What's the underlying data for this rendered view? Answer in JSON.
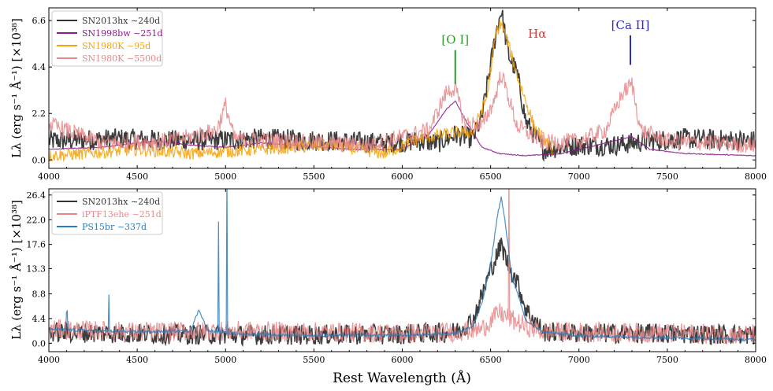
{
  "chart_data": [
    {
      "type": "line",
      "panel": "top",
      "ylabel": "Lλ (erg s⁻¹ Å⁻¹) [×10³⁸]",
      "xlim": [
        4000,
        8000
      ],
      "ylim": [
        -0.4,
        7.2
      ],
      "x_ticks": [
        4000,
        4500,
        5000,
        5500,
        6000,
        6500,
        7000,
        7500,
        8000
      ],
      "y_ticks": [
        0.0,
        2.2,
        4.4,
        6.6
      ],
      "y_tick_labels": [
        "0.0",
        "2.2",
        "4.4",
        "6.6"
      ],
      "legend_position": "top-left",
      "series": [
        {
          "name": "SN2013hx ∼240d",
          "color": "#333333",
          "noise": 0.5,
          "x": [
            4000,
            4400,
            4800,
            5200,
            5600,
            5900,
            6100,
            6200,
            6300,
            6400,
            6450,
            6500,
            6530,
            6560,
            6600,
            6650,
            6700,
            6800,
            6900,
            7000,
            7200,
            7400,
            7600,
            8000
          ],
          "y": [
            0.9,
            1.0,
            0.9,
            1.0,
            0.9,
            0.8,
            0.9,
            0.8,
            1.2,
            1.0,
            2.0,
            4.5,
            6.0,
            7.1,
            5.0,
            4.1,
            1.8,
            0.5,
            0.6,
            0.7,
            0.7,
            0.9,
            1.0,
            0.9
          ]
        },
        {
          "name": "SN1998bw ∼251d",
          "color": "#8b1a89",
          "noise": 0.02,
          "x": [
            4000,
            4300,
            4600,
            4800,
            5000,
            5200,
            5400,
            5700,
            6000,
            6150,
            6250,
            6300,
            6350,
            6450,
            6550,
            6700,
            6900,
            7100,
            7250,
            7300,
            7400,
            7600,
            8000
          ],
          "y": [
            0.5,
            0.6,
            0.9,
            0.7,
            0.6,
            0.8,
            0.7,
            0.5,
            0.5,
            1.2,
            2.4,
            2.8,
            2.0,
            0.6,
            0.3,
            0.2,
            0.3,
            0.7,
            1.0,
            1.1,
            0.5,
            0.3,
            0.2
          ]
        },
        {
          "name": "SN1980K ∼95d",
          "color": "#f5a20c",
          "noise": 0.3,
          "x": [
            4000,
            4200,
            4500,
            4800,
            5200,
            5600,
            5900,
            6100,
            6300,
            6400,
            6480,
            6530,
            6560,
            6600,
            6650,
            6750,
            6850
          ],
          "y": [
            0.2,
            0.3,
            0.5,
            0.3,
            0.5,
            0.7,
            0.3,
            1.0,
            1.3,
            1.3,
            3.0,
            6.0,
            6.5,
            5.5,
            4.0,
            1.5,
            0.5
          ]
        },
        {
          "name": "SN1980K ∼5500d",
          "color": "#e8888a",
          "noise": 0.4,
          "x": [
            4000,
            4300,
            4700,
            4950,
            5000,
            5050,
            5300,
            5800,
            6150,
            6250,
            6300,
            6350,
            6450,
            6520,
            6560,
            6600,
            6650,
            6800,
            7000,
            7150,
            7250,
            7300,
            7350,
            7500,
            8000
          ],
          "y": [
            1.7,
            0.8,
            0.9,
            1.4,
            2.6,
            1.0,
            0.9,
            0.7,
            1.4,
            3.2,
            3.4,
            1.8,
            1.6,
            2.8,
            4.1,
            3.0,
            1.6,
            0.8,
            0.9,
            1.4,
            3.2,
            3.6,
            1.4,
            0.9,
            0.7
          ]
        }
      ],
      "annotations": [
        {
          "text": "[O I]",
          "x": 6300,
          "color": "#2e9b2e",
          "y_top": 3.6,
          "y_bottom": 5.2
        },
        {
          "text": "Hα",
          "x": 6563,
          "color": "#d93a3a"
        },
        {
          "text": "[Ca II]",
          "x": 7291,
          "color": "#2c2cc8",
          "y_top": 4.5,
          "y_bottom": 5.9
        }
      ]
    },
    {
      "type": "line",
      "panel": "bottom",
      "xlabel": "Rest Wavelength (Å)",
      "ylabel": "Lλ (erg s⁻¹ Å⁻¹) [×10³⁸]",
      "xlim": [
        4000,
        8000
      ],
      "ylim": [
        -1.5,
        27.5
      ],
      "x_ticks": [
        4000,
        4500,
        5000,
        5500,
        6000,
        6500,
        7000,
        7500,
        8000
      ],
      "y_ticks": [
        0.0,
        4.4,
        8.8,
        13.3,
        17.6,
        22.0,
        26.4
      ],
      "y_tick_labels": [
        "0.0",
        "4.4",
        "8.8",
        "13.3",
        "17.6",
        "22.0",
        "26.4"
      ],
      "legend_position": "top-left",
      "series": [
        {
          "name": "SN2013hx ∼240d",
          "color": "#333333",
          "noise": 1.8,
          "x": [
            4000,
            4500,
            5000,
            5500,
            6000,
            6300,
            6400,
            6450,
            6500,
            6540,
            6560,
            6600,
            6650,
            6700,
            6800,
            7000,
            7500,
            8000
          ],
          "y": [
            2.0,
            1.7,
            1.5,
            1.5,
            1.6,
            2.0,
            4.0,
            8.5,
            13.0,
            16.0,
            17.5,
            14.0,
            11.0,
            6.0,
            2.0,
            1.8,
            1.7,
            1.5
          ]
        },
        {
          "name": "iPTF13ehe ∼251d",
          "color": "#e8888a",
          "noise": 1.8,
          "x": [
            4000,
            4500,
            5000,
            5500,
            6000,
            6300,
            6450,
            6550,
            6600,
            6700,
            6800,
            7000,
            7500,
            8000
          ],
          "y": [
            2.5,
            2.0,
            2.2,
            2.0,
            1.8,
            2.0,
            2.5,
            5.5,
            4.5,
            3.0,
            2.0,
            2.0,
            1.8,
            1.5
          ]
        },
        {
          "name": "PS15br ∼337d",
          "color": "#2b7bb9",
          "noise": 0.25,
          "x": [
            4000,
            4500,
            4800,
            4850,
            4900,
            5100,
            5500,
            6000,
            6300,
            6400,
            6450,
            6500,
            6540,
            6560,
            6580,
            6620,
            6700,
            6800,
            7000,
            7500,
            8000
          ],
          "y": [
            2.5,
            2.0,
            2.2,
            6.0,
            2.2,
            1.6,
            1.4,
            1.4,
            1.8,
            3.0,
            7.0,
            14.0,
            23.0,
            26.0,
            22.0,
            12.0,
            4.0,
            2.0,
            1.3,
            1.0,
            0.6
          ]
        }
      ],
      "spikes": [
        {
          "series": 2,
          "x": 4102,
          "height": 3.2
        },
        {
          "series": 2,
          "x": 4340,
          "height": 6.5
        },
        {
          "series": 2,
          "x": 4959,
          "height": 19.5
        },
        {
          "series": 2,
          "x": 5007,
          "height": 29.0
        },
        {
          "series": 1,
          "x": 6605,
          "height": 28.0
        }
      ]
    }
  ]
}
